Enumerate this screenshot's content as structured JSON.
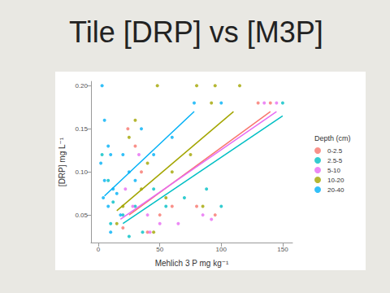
{
  "chart_data": {
    "type": "scatter",
    "title": "Tile [DRP] vs [M3P]",
    "x_label": "Mehlich 3 P mg kg⁻¹",
    "y_label": "[DRP] mg L⁻¹",
    "legend_title": "Depth (cm)",
    "legend": "right",
    "grid": false,
    "xlim": [
      -6,
      158
    ],
    "xticks": [
      0,
      50,
      100,
      150
    ],
    "ylim": [
      0.018,
      0.205
    ],
    "yticks": [
      {
        "value": 0.05,
        "label": "0.05"
      },
      {
        "value": 0.1,
        "label": "0.10"
      },
      {
        "value": 0.15,
        "label": "0.15"
      },
      {
        "value": 0.2,
        "label": "0.20"
      }
    ],
    "series": [
      {
        "name": "0-2.5",
        "color": "#F8766D",
        "marker": "circle",
        "x": [
          24,
          30,
          40,
          50,
          60,
          80,
          95,
          130,
          140,
          20,
          35
        ],
        "values": [
          0.15,
          0.13,
          0.03,
          0.05,
          0.06,
          0.06,
          0.05,
          0.18,
          0.18,
          0.035,
          0.1
        ],
        "fit": {
          "x": [
            25,
            140
          ],
          "values": [
            0.05,
            0.17
          ]
        }
      },
      {
        "name": "2.5-5",
        "color": "#00BFC4",
        "marker": "circle",
        "x": [
          3,
          8,
          10,
          20,
          30,
          45,
          55,
          70,
          88,
          100,
          150,
          36,
          25,
          12
        ],
        "values": [
          0.12,
          0.09,
          0.04,
          0.05,
          0.06,
          0.08,
          0.06,
          0.07,
          0.08,
          0.06,
          0.18,
          0.03,
          0.025,
          0.065
        ],
        "fit": {
          "x": [
            20,
            150
          ],
          "values": [
            0.04,
            0.165
          ]
        }
      },
      {
        "name": "5-10",
        "color": "#E76BF3",
        "marker": "circle",
        "x": [
          33,
          40,
          42,
          50,
          65,
          85,
          92,
          145,
          135,
          22,
          28
        ],
        "values": [
          0.12,
          0.05,
          0.03,
          0.04,
          0.04,
          0.05,
          0.045,
          0.18,
          0.18,
          0.08,
          0.06
        ],
        "fit": {
          "x": [
            18,
            145
          ],
          "values": [
            0.045,
            0.17
          ]
        }
      },
      {
        "name": "10-20",
        "color": "#A3A500",
        "marker": "circle",
        "x": [
          48,
          80,
          95,
          115,
          30,
          25,
          40,
          35,
          20,
          55,
          60,
          75,
          92,
          85,
          45,
          15
        ],
        "values": [
          0.2,
          0.2,
          0.2,
          0.2,
          0.16,
          0.14,
          0.11,
          0.08,
          0.06,
          0.07,
          0.1,
          0.12,
          0.18,
          0.06,
          0.03,
          0.04
        ],
        "fit": {
          "x": [
            15,
            110
          ],
          "values": [
            0.055,
            0.17
          ]
        }
      },
      {
        "name": "20-40",
        "color": "#00B0F6",
        "marker": "circle",
        "x": [
          3,
          5,
          8,
          10,
          2,
          5,
          12,
          15,
          4,
          8,
          20,
          25,
          30,
          35,
          45,
          60,
          78,
          100,
          18,
          10
        ],
        "values": [
          0.2,
          0.16,
          0.13,
          0.12,
          0.11,
          0.09,
          0.08,
          0.075,
          0.07,
          0.06,
          0.12,
          0.1,
          0.09,
          0.15,
          0.12,
          0.14,
          0.18,
          0.18,
          0.05,
          0.03
        ],
        "fit": {
          "x": [
            5,
            78
          ],
          "values": [
            0.072,
            0.17
          ]
        }
      }
    ]
  }
}
